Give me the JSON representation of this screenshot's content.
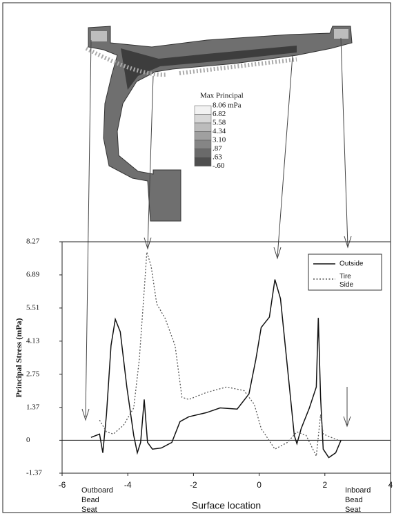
{
  "contour_legend": {
    "title": "Max Principal",
    "labels": [
      "8.06 mPa",
      "6.82",
      "5.58",
      "4.34",
      "3.10",
      ".87",
      ".63",
      "-.60"
    ]
  },
  "chart_data": {
    "type": "line",
    "x_label": "Surface location",
    "y_label": "Principal Stress (mPa)",
    "xlim": [
      -6,
      4
    ],
    "xticks": [
      -6,
      -4,
      -2,
      0,
      2,
      4
    ],
    "ylim": [
      -1.37,
      8.27
    ],
    "yticks": [
      -1.37,
      0,
      1.37,
      2.75,
      4.13,
      5.51,
      6.89,
      8.27
    ],
    "legend": "upper right",
    "annotations": [
      "Outboard Bead Seat",
      "Inboard Bead Seat"
    ],
    "series": [
      {
        "name": "Outside",
        "color": "#111111",
        "style": "solid",
        "x": [
          -5.12,
          -4.86,
          -4.76,
          -4.65,
          -4.51,
          -4.38,
          -4.23,
          -4.03,
          -3.82,
          -3.71,
          -3.61,
          -3.5,
          -3.4,
          -3.25,
          -2.98,
          -2.66,
          -2.41,
          -2.14,
          -1.61,
          -1.19,
          -0.67,
          -0.31,
          -0.1,
          0.06,
          0.31,
          0.48,
          0.65,
          0.86,
          1.07,
          1.15,
          1.28,
          1.53,
          1.74,
          1.8,
          1.87,
          1.95,
          2.12,
          2.33,
          2.49
        ],
        "values": [
          0.12,
          0.26,
          -0.52,
          1.07,
          3.95,
          5.04,
          4.52,
          2.22,
          0.2,
          -0.52,
          -0.09,
          1.7,
          -0.09,
          -0.37,
          -0.32,
          -0.09,
          0.78,
          0.98,
          1.15,
          1.35,
          1.3,
          1.93,
          3.37,
          4.7,
          5.13,
          6.7,
          5.9,
          3.06,
          0.2,
          -0.14,
          0.49,
          1.35,
          2.22,
          5.1,
          1.79,
          -0.37,
          -0.72,
          -0.52,
          0.0
        ]
      },
      {
        "name": "Tire Side",
        "color": "#555555",
        "style": "dotted",
        "x": [
          -4.86,
          -4.65,
          -4.44,
          -4.13,
          -3.82,
          -3.65,
          -3.5,
          -3.42,
          -3.29,
          -3.12,
          -2.87,
          -2.56,
          -2.35,
          -2.14,
          -1.61,
          -0.99,
          -0.46,
          -0.15,
          0.06,
          0.48,
          0.86,
          1.15,
          1.43,
          1.74,
          1.87,
          1.95,
          2.16,
          2.41
        ],
        "values": [
          0.84,
          0.35,
          0.26,
          0.63,
          1.35,
          3.37,
          6.25,
          7.84,
          7.26,
          5.68,
          5.1,
          3.95,
          1.79,
          1.7,
          1.99,
          2.22,
          2.07,
          1.5,
          0.49,
          -0.37,
          -0.09,
          0.35,
          0.2,
          -0.66,
          1.07,
          0.26,
          0.14,
          0.0
        ]
      }
    ]
  }
}
